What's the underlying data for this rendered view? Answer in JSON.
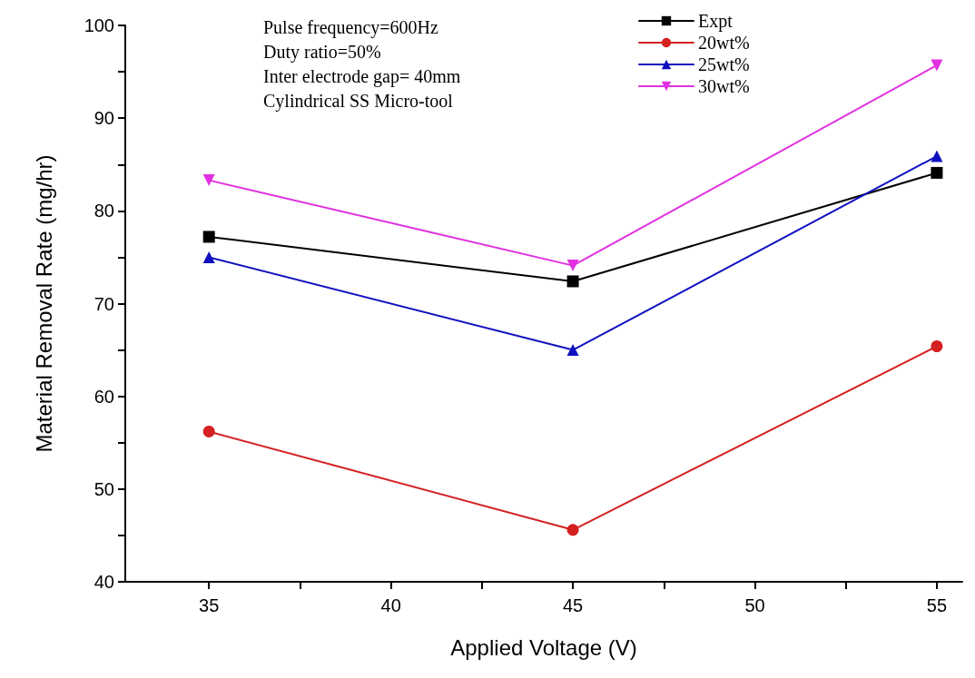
{
  "chart_data": {
    "type": "line",
    "xlabel": "Applied Voltage (V)",
    "ylabel": "Material Removal Rate (mg/hr)",
    "x": [
      35,
      45,
      55
    ],
    "series": [
      {
        "name": "Expt",
        "color": "#000000",
        "marker": "square",
        "values": [
          77.2,
          72.4,
          84.1
        ]
      },
      {
        "name": "20wt%",
        "color": "#d42020",
        "marker": "circle",
        "values": [
          56.2,
          45.6,
          65.4
        ]
      },
      {
        "name": "25wt%",
        "color": "#1010c0",
        "marker": "triangle",
        "values": [
          75.0,
          65.0,
          85.9
        ]
      },
      {
        "name": "30wt%",
        "color": "#e030e0",
        "marker": "triangle-down",
        "values": [
          83.3,
          74.1,
          95.7
        ]
      }
    ],
    "xlim": [
      32.7,
      55.7
    ],
    "xticks": [
      35,
      {
        "value": 37.5,
        "label": null
      },
      40,
      {
        "value": 42.5,
        "label": null
      },
      45,
      {
        "value": 47.5,
        "label": null
      },
      50,
      {
        "value": 52.5,
        "label": null
      },
      55
    ],
    "ylim": [
      40,
      100
    ],
    "yticks": [
      40,
      {
        "value": 45,
        "label": null
      },
      50,
      {
        "value": 55,
        "label": null
      },
      60,
      {
        "value": 65,
        "label": null
      },
      70,
      {
        "value": 75,
        "label": null
      },
      80,
      {
        "value": 85,
        "label": null
      },
      90,
      {
        "value": 95,
        "label": null
      },
      100
    ],
    "annotations": [
      "Pulse frequency=600Hz",
      "Duty ratio=50%",
      "Inter electrode gap= 40mm",
      "Cylindrical SS Micro-tool"
    ],
    "legend": "top right",
    "grid": false,
    "line_style": "solid"
  }
}
